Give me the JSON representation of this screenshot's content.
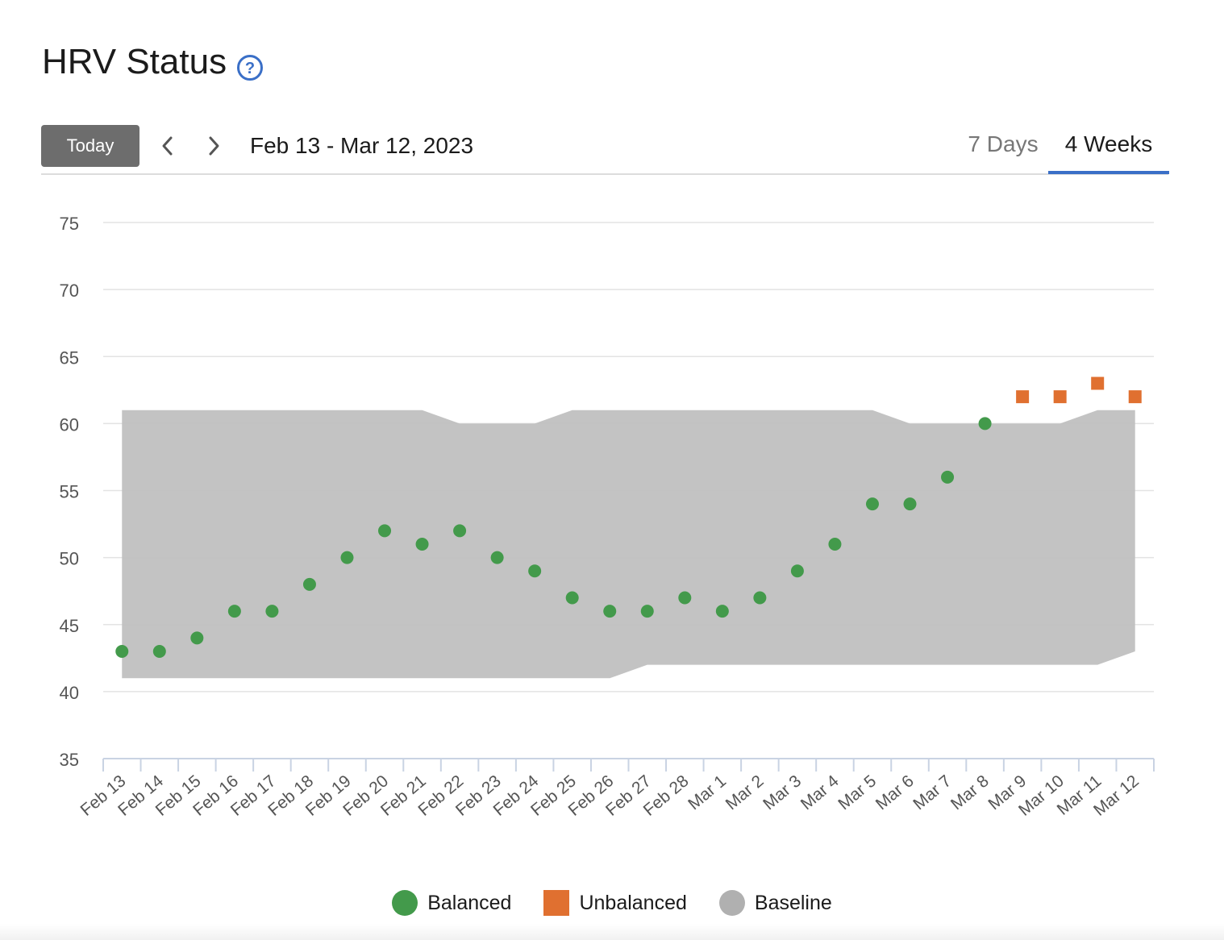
{
  "header": {
    "title": "HRV Status",
    "help_icon": "question-circle-icon"
  },
  "toolbar": {
    "today_label": "Today",
    "prev_icon": "chevron-left-icon",
    "next_icon": "chevron-right-icon",
    "date_range": "Feb 13 - Mar 12, 2023",
    "tabs": [
      {
        "label": "7 Days",
        "active": false
      },
      {
        "label": "4 Weeks",
        "active": true
      }
    ]
  },
  "colors": {
    "balanced": "#439a4b",
    "unbalanced": "#e07030",
    "baseline": "#c0c0c0",
    "accent": "#3a6fc7"
  },
  "legend": {
    "items": [
      {
        "label": "Balanced",
        "shape": "circle",
        "color": "#439a4b"
      },
      {
        "label": "Unbalanced",
        "shape": "square",
        "color": "#e07030"
      },
      {
        "label": "Baseline",
        "shape": "circle",
        "color": "#b0b0b0"
      }
    ]
  },
  "chart_data": {
    "type": "scatter",
    "title": "",
    "xlabel": "",
    "ylabel": "",
    "ylim": [
      35,
      75
    ],
    "yticks": [
      35,
      40,
      45,
      50,
      55,
      60,
      65,
      70,
      75
    ],
    "grid": true,
    "legend_position": "bottom",
    "categories": [
      "Feb 13",
      "Feb 14",
      "Feb 15",
      "Feb 16",
      "Feb 17",
      "Feb 18",
      "Feb 19",
      "Feb 20",
      "Feb 21",
      "Feb 22",
      "Feb 23",
      "Feb 24",
      "Feb 25",
      "Feb 26",
      "Feb 27",
      "Feb 28",
      "Mar 1",
      "Mar 2",
      "Mar 3",
      "Mar 4",
      "Mar 5",
      "Mar 6",
      "Mar 7",
      "Mar 8",
      "Mar 9",
      "Mar 10",
      "Mar 11",
      "Mar 12"
    ],
    "series": [
      {
        "name": "Balanced",
        "marker": "circle",
        "points": [
          {
            "x": "Feb 13",
            "y": 43
          },
          {
            "x": "Feb 14",
            "y": 43
          },
          {
            "x": "Feb 15",
            "y": 44
          },
          {
            "x": "Feb 16",
            "y": 46
          },
          {
            "x": "Feb 17",
            "y": 46
          },
          {
            "x": "Feb 18",
            "y": 48
          },
          {
            "x": "Feb 19",
            "y": 50
          },
          {
            "x": "Feb 20",
            "y": 52
          },
          {
            "x": "Feb 21",
            "y": 51
          },
          {
            "x": "Feb 22",
            "y": 52
          },
          {
            "x": "Feb 23",
            "y": 50
          },
          {
            "x": "Feb 24",
            "y": 49
          },
          {
            "x": "Feb 25",
            "y": 47
          },
          {
            "x": "Feb 26",
            "y": 46
          },
          {
            "x": "Feb 27",
            "y": 46
          },
          {
            "x": "Feb 28",
            "y": 47
          },
          {
            "x": "Mar 1",
            "y": 46
          },
          {
            "x": "Mar 2",
            "y": 47
          },
          {
            "x": "Mar 3",
            "y": 49
          },
          {
            "x": "Mar 4",
            "y": 51
          },
          {
            "x": "Mar 5",
            "y": 54
          },
          {
            "x": "Mar 6",
            "y": 54
          },
          {
            "x": "Mar 7",
            "y": 56
          },
          {
            "x": "Mar 8",
            "y": 60
          }
        ]
      },
      {
        "name": "Unbalanced",
        "marker": "square",
        "points": [
          {
            "x": "Mar 9",
            "y": 62
          },
          {
            "x": "Mar 10",
            "y": 62
          },
          {
            "x": "Mar 11",
            "y": 63
          },
          {
            "x": "Mar 12",
            "y": 62
          }
        ]
      },
      {
        "name": "Baseline",
        "type": "range-area",
        "low": [
          41,
          41,
          41,
          41,
          41,
          41,
          41,
          41,
          41,
          41,
          41,
          41,
          41,
          41,
          42,
          42,
          42,
          42,
          42,
          42,
          42,
          42,
          42,
          42,
          42,
          42,
          42,
          43
        ],
        "high": [
          61,
          61,
          61,
          61,
          61,
          61,
          61,
          61,
          61,
          60,
          60,
          60,
          61,
          61,
          61,
          61,
          61,
          61,
          61,
          61,
          61,
          60,
          60,
          60,
          60,
          60,
          61,
          61
        ]
      }
    ]
  }
}
